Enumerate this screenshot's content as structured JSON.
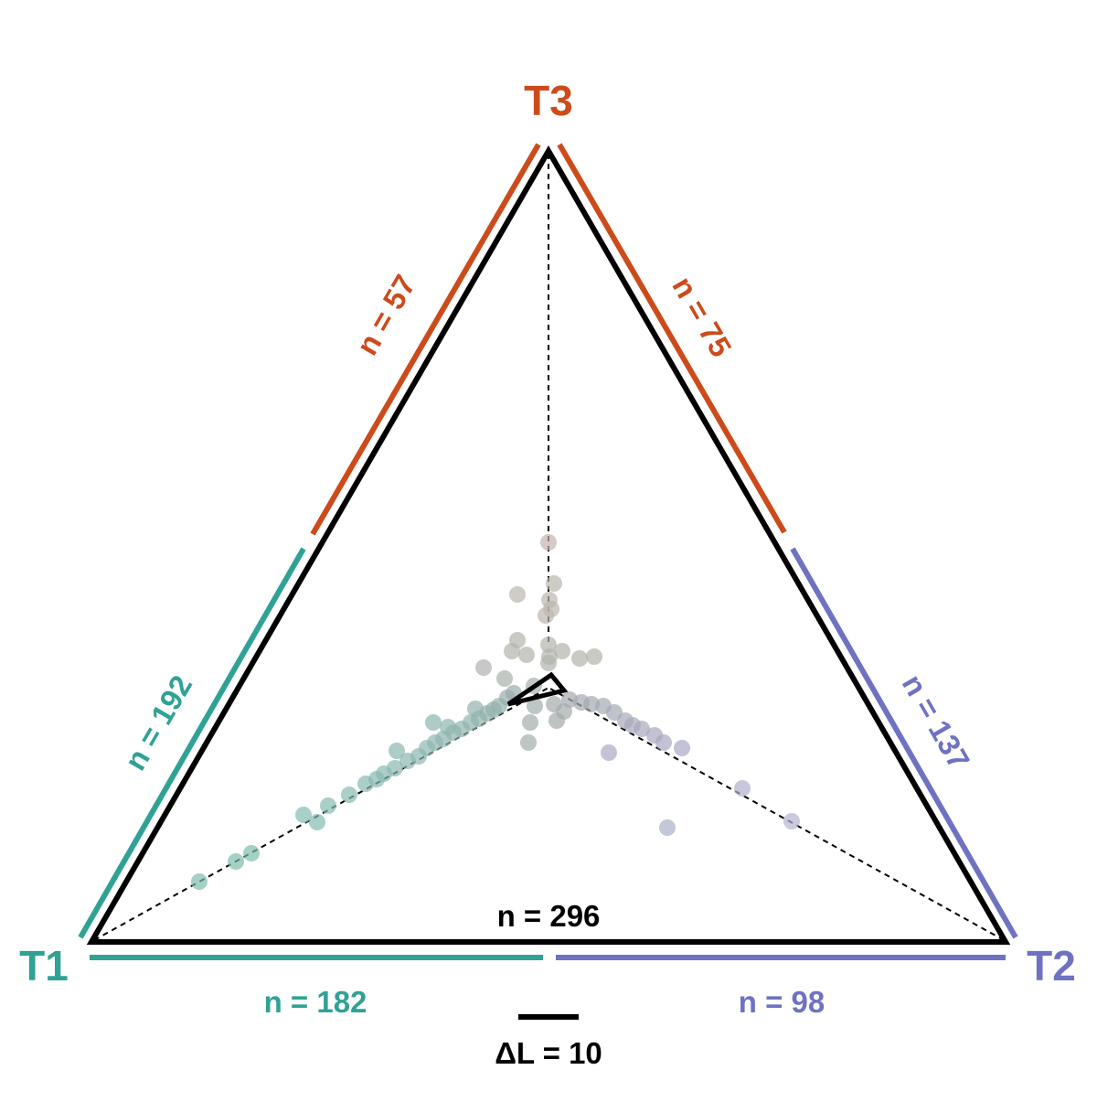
{
  "colors": {
    "t1": "#2fa295",
    "t2": "#6f72c1",
    "t3": "#cc4b1b",
    "outline": "#000000",
    "point": "#8fa5a8"
  },
  "vertices": {
    "t1": "T1",
    "t2": "T2",
    "t3": "T3"
  },
  "edge_counts": {
    "t3_left": "n = 57",
    "t3_right": "n = 75",
    "t1_left": "n = 192",
    "t2_right": "n = 137",
    "t1_bottom": "n = 182",
    "t2_bottom": "n = 98",
    "total": "n = 296"
  },
  "scale_bar": {
    "label": "ΔL = 10"
  }
}
